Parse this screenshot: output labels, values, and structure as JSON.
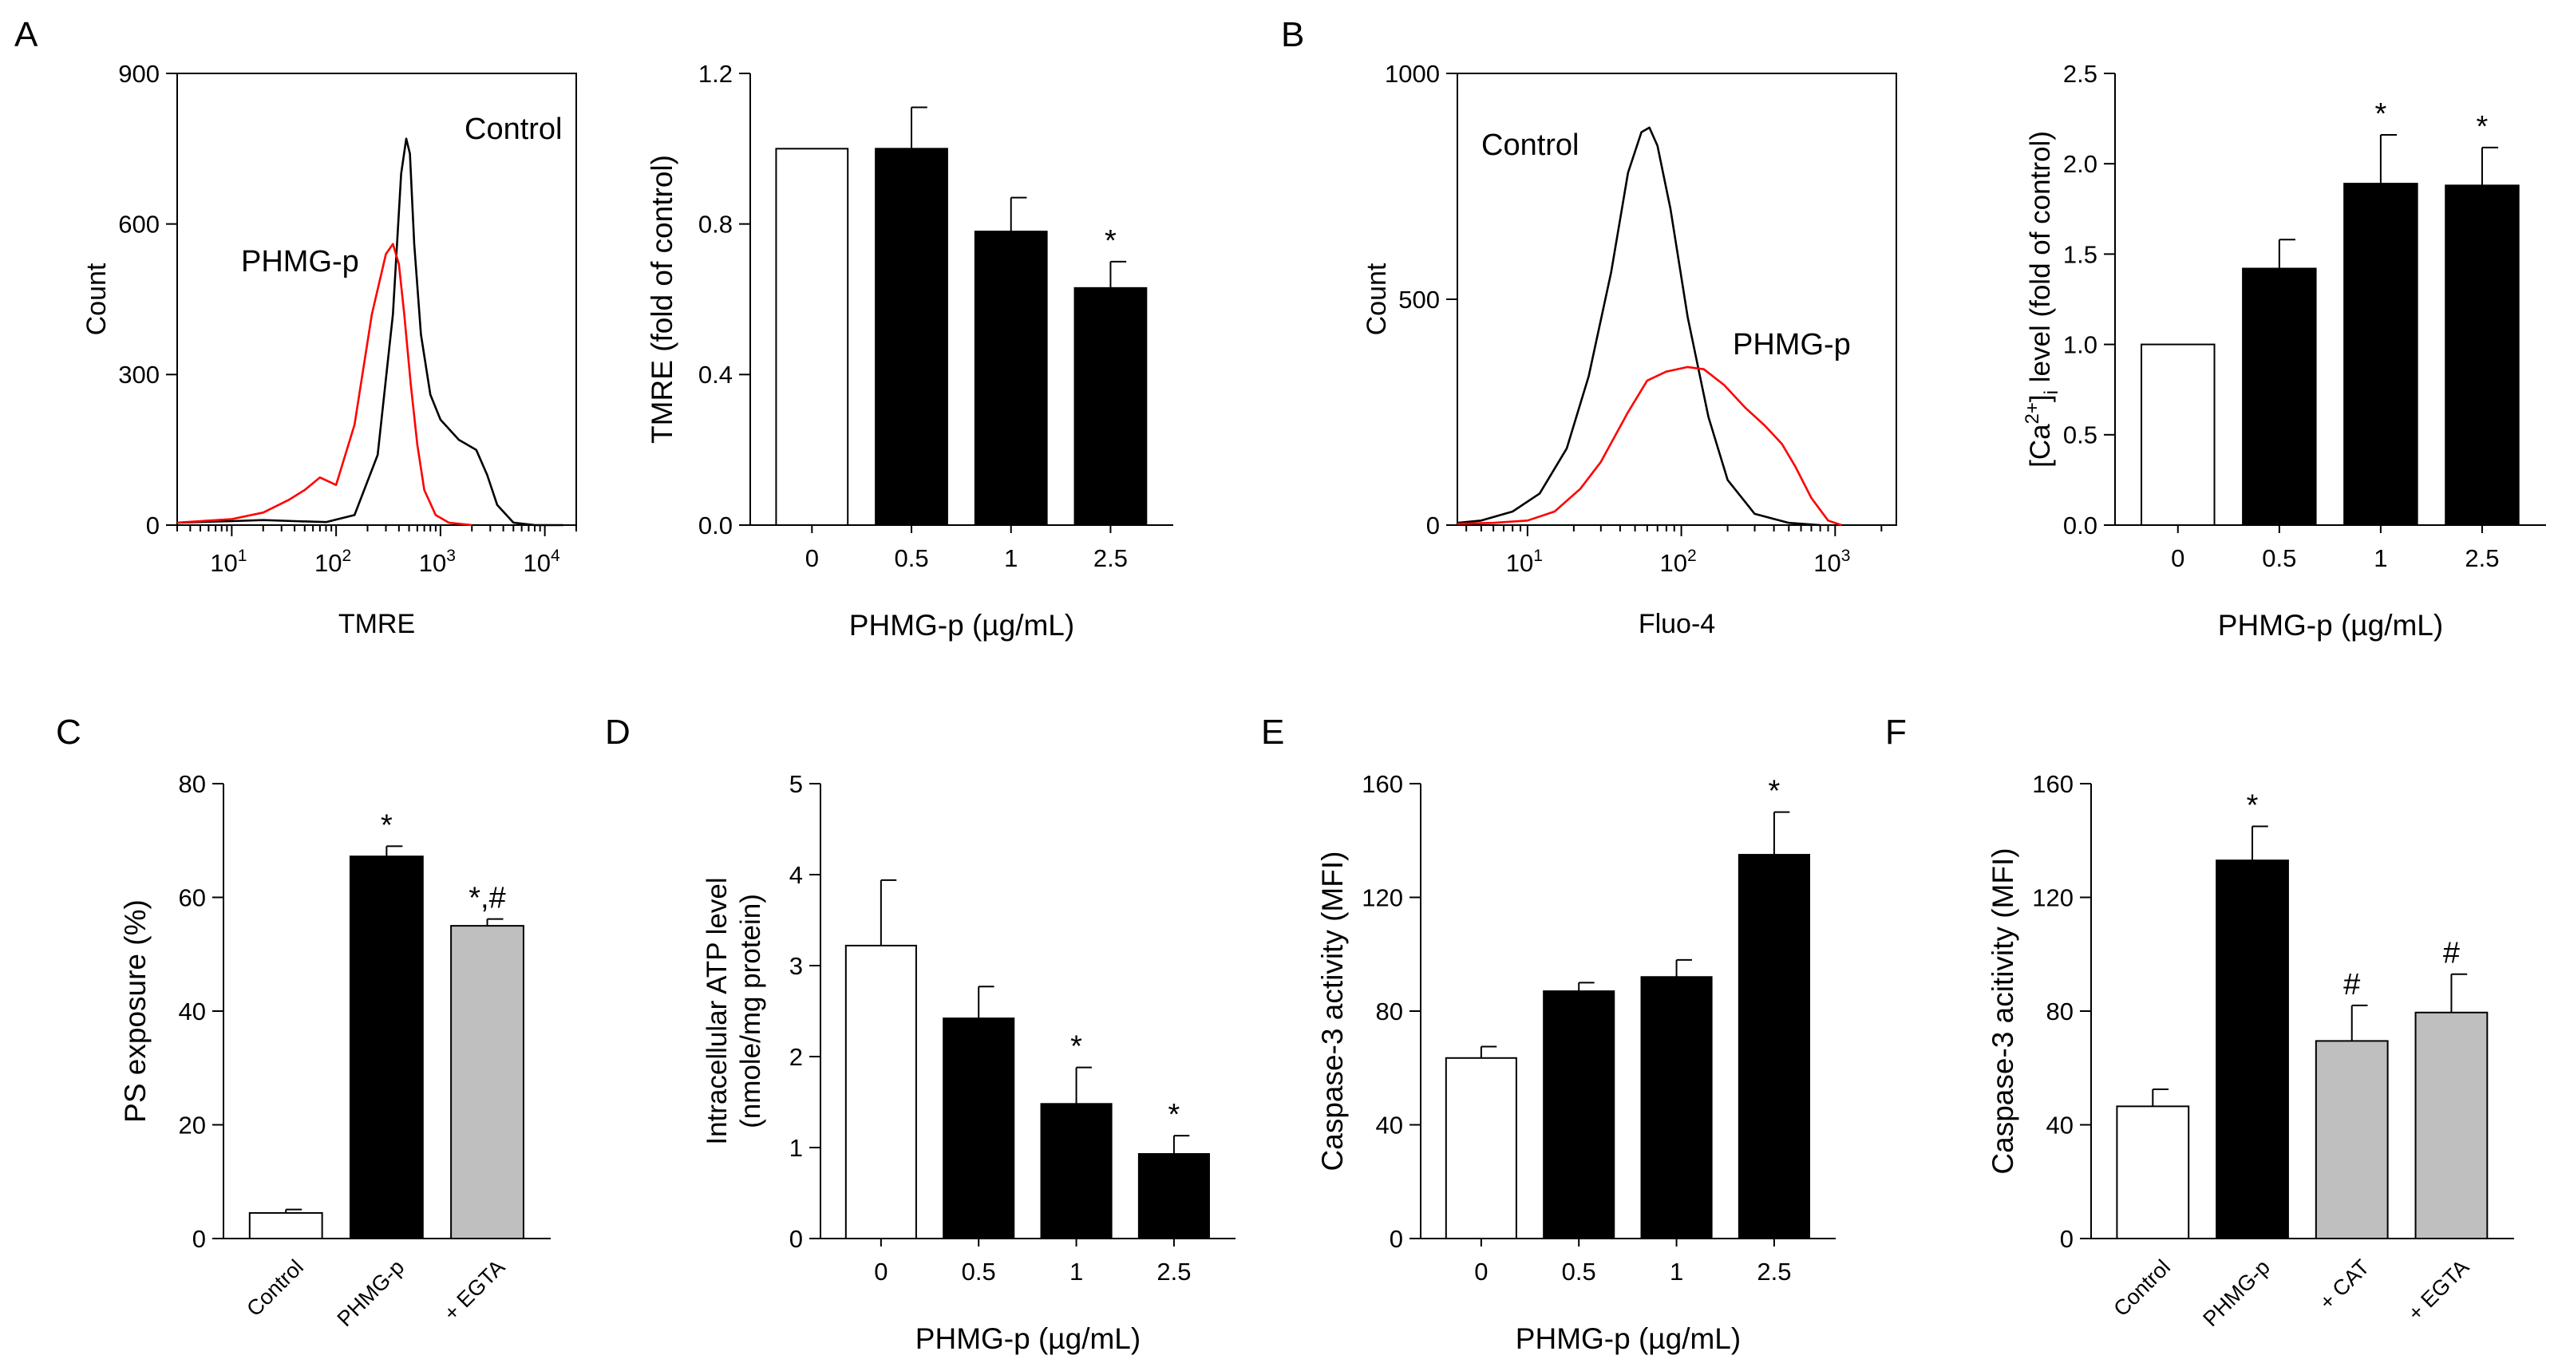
{
  "chart_data": [
    {
      "panel": "A",
      "type": "line",
      "xlabel": "TMRE",
      "ylabel": "Count",
      "ylim": [
        0,
        900
      ],
      "yticks": [
        "0",
        "300",
        "600",
        "900"
      ],
      "xscale": "log",
      "xlim": [
        3,
        20000
      ],
      "xticks": [
        {
          "value": 10,
          "base": "10",
          "exp": "1"
        },
        {
          "value": 100,
          "base": "10",
          "exp": "2"
        },
        {
          "value": 1000,
          "base": "10",
          "exp": "3"
        },
        {
          "value": 10000,
          "base": "10",
          "exp": "4"
        }
      ],
      "annotations": [
        {
          "text": "Control",
          "color": "#000000"
        },
        {
          "text": "PHMG-p",
          "color": "#ff0000"
        }
      ],
      "series": [
        {
          "color": "#000000",
          "x": [
            3,
            10,
            20,
            40,
            80,
            150,
            250,
            350,
            420,
            470,
            510,
            560,
            650,
            800,
            1000,
            1500,
            2200,
            2800,
            3500,
            5000,
            8000,
            15000
          ],
          "y": [
            5,
            8,
            10,
            8,
            6,
            20,
            140,
            420,
            700,
            770,
            740,
            560,
            380,
            260,
            210,
            170,
            150,
            100,
            40,
            5,
            0,
            0
          ]
        },
        {
          "color": "#ff0000",
          "x": [
            3,
            10,
            20,
            35,
            50,
            70,
            100,
            150,
            220,
            300,
            350,
            400,
            450,
            520,
            600,
            700,
            900,
            1200,
            2000
          ],
          "y": [
            5,
            12,
            25,
            50,
            70,
            95,
            80,
            200,
            420,
            540,
            560,
            520,
            420,
            280,
            160,
            70,
            20,
            5,
            0
          ]
        }
      ]
    },
    {
      "panel": "",
      "type": "bar",
      "categories": [
        "0",
        "0.5",
        "1",
        "2.5"
      ],
      "values": [
        1.0,
        1.0,
        0.78,
        0.63
      ],
      "errors": [
        0,
        0.11,
        0.09,
        0.07
      ],
      "fills": [
        "#ffffff",
        "#000000",
        "#000000",
        "#000000"
      ],
      "sig": [
        "",
        "",
        "",
        "*"
      ],
      "xlabel": "PHMG-p (µg/mL)",
      "ylabel": "TMRE (fold of control)",
      "ylim": [
        0,
        1.2
      ],
      "yticks": [
        "0.0",
        "0.4",
        "0.8",
        "1.2"
      ]
    },
    {
      "panel": "B",
      "type": "line",
      "xlabel": "Fluo-4",
      "ylabel": "Count",
      "ylim": [
        0,
        1000
      ],
      "yticks": [
        "0",
        "500",
        "1000"
      ],
      "xscale": "log",
      "xlim": [
        3.5,
        2500
      ],
      "xticks": [
        {
          "value": 10,
          "base": "10",
          "exp": "1"
        },
        {
          "value": 100,
          "base": "10",
          "exp": "2"
        },
        {
          "value": 1000,
          "base": "10",
          "exp": "3"
        }
      ],
      "annotations": [
        {
          "text": "Control",
          "color": "#000000"
        },
        {
          "text": "PHMG-p",
          "color": "#ff0000"
        }
      ],
      "series": [
        {
          "color": "#000000",
          "x": [
            3.5,
            5,
            8,
            12,
            18,
            25,
            35,
            45,
            55,
            62,
            70,
            85,
            110,
            150,
            200,
            300,
            500,
            800
          ],
          "y": [
            5,
            10,
            30,
            70,
            170,
            330,
            560,
            780,
            870,
            880,
            840,
            700,
            460,
            240,
            100,
            25,
            5,
            0
          ]
        },
        {
          "color": "#ff0000",
          "x": [
            3.5,
            6,
            10,
            15,
            22,
            30,
            45,
            60,
            80,
            110,
            140,
            190,
            260,
            350,
            450,
            550,
            700,
            900,
            1100
          ],
          "y": [
            3,
            5,
            10,
            30,
            80,
            140,
            250,
            320,
            340,
            350,
            345,
            310,
            260,
            220,
            180,
            130,
            60,
            10,
            0
          ]
        }
      ]
    },
    {
      "panel": "",
      "type": "bar",
      "categories": [
        "0",
        "0.5",
        "1",
        "2.5"
      ],
      "values": [
        1.0,
        1.42,
        1.89,
        1.88
      ],
      "errors": [
        0,
        0.16,
        0.27,
        0.21
      ],
      "fills": [
        "#ffffff",
        "#000000",
        "#000000",
        "#000000"
      ],
      "sig": [
        "",
        "",
        "*",
        "*"
      ],
      "xlabel": "PHMG-p (µg/mL)",
      "ylabel_parts": {
        "pre": "[Ca",
        "sup": "2+",
        "mid": "]",
        "sub": "i",
        "post": " level (fold of control)"
      },
      "ylim": [
        0,
        2.5
      ],
      "yticks": [
        "0.0",
        "0.5",
        "1.0",
        "1.5",
        "2.0",
        "2.5"
      ]
    },
    {
      "panel": "C",
      "type": "bar",
      "categories": [
        "Control",
        "PHMG-p",
        "+ EGTA"
      ],
      "values": [
        4.5,
        67.2,
        55
      ],
      "errors": [
        0.6,
        1.8,
        1.2
      ],
      "fills": [
        "#ffffff",
        "#000000",
        "#bfbfbf"
      ],
      "sig": [
        "",
        "*",
        "*,#"
      ],
      "xlabel": "",
      "ylabel": "PS exposure (%)",
      "ylim": [
        0,
        80
      ],
      "yticks": [
        "0",
        "20",
        "40",
        "60",
        "80"
      ]
    },
    {
      "panel": "D",
      "type": "bar",
      "categories": [
        "0",
        "0.5",
        "1",
        "2.5"
      ],
      "values": [
        3.22,
        2.42,
        1.48,
        0.93
      ],
      "errors": [
        0.72,
        0.35,
        0.4,
        0.2
      ],
      "fills": [
        "#ffffff",
        "#000000",
        "#000000",
        "#000000"
      ],
      "sig": [
        "",
        "",
        "*",
        "*"
      ],
      "xlabel": "PHMG-p (µg/mL)",
      "ylabel_lines": [
        "Intracellular ATP level",
        "(nmole/mg protein)"
      ],
      "ylim": [
        0,
        5
      ],
      "yticks": [
        "0",
        "1",
        "2",
        "3",
        "4",
        "5"
      ]
    },
    {
      "panel": "E",
      "type": "bar",
      "categories": [
        "0",
        "0.5",
        "1",
        "2.5"
      ],
      "values": [
        63.5,
        87,
        92,
        135
      ],
      "errors": [
        4,
        3,
        6,
        15
      ],
      "fills": [
        "#ffffff",
        "#000000",
        "#000000",
        "#000000"
      ],
      "sig": [
        "",
        "",
        "",
        "*"
      ],
      "xlabel": "PHMG-p (µg/mL)",
      "ylabel": "Caspase-3 activity (MFI)",
      "ylim": [
        0,
        160
      ],
      "yticks": [
        "0",
        "40",
        "80",
        "120",
        "160"
      ]
    },
    {
      "panel": "F",
      "type": "bar",
      "categories": [
        "Control",
        "PHMG-p",
        "+ CAT",
        "+ EGTA"
      ],
      "values": [
        46.5,
        133,
        69.5,
        79.5
      ],
      "errors": [
        6,
        12,
        12.5,
        13.5
      ],
      "fills": [
        "#ffffff",
        "#000000",
        "#bfbfbf",
        "#bfbfbf"
      ],
      "sig": [
        "",
        "*",
        "#",
        "#"
      ],
      "xlabel": "",
      "ylabel": "Caspase-3 acitivity (MFI)",
      "ylim": [
        0,
        160
      ],
      "yticks": [
        "0",
        "40",
        "80",
        "120",
        "160"
      ]
    }
  ]
}
